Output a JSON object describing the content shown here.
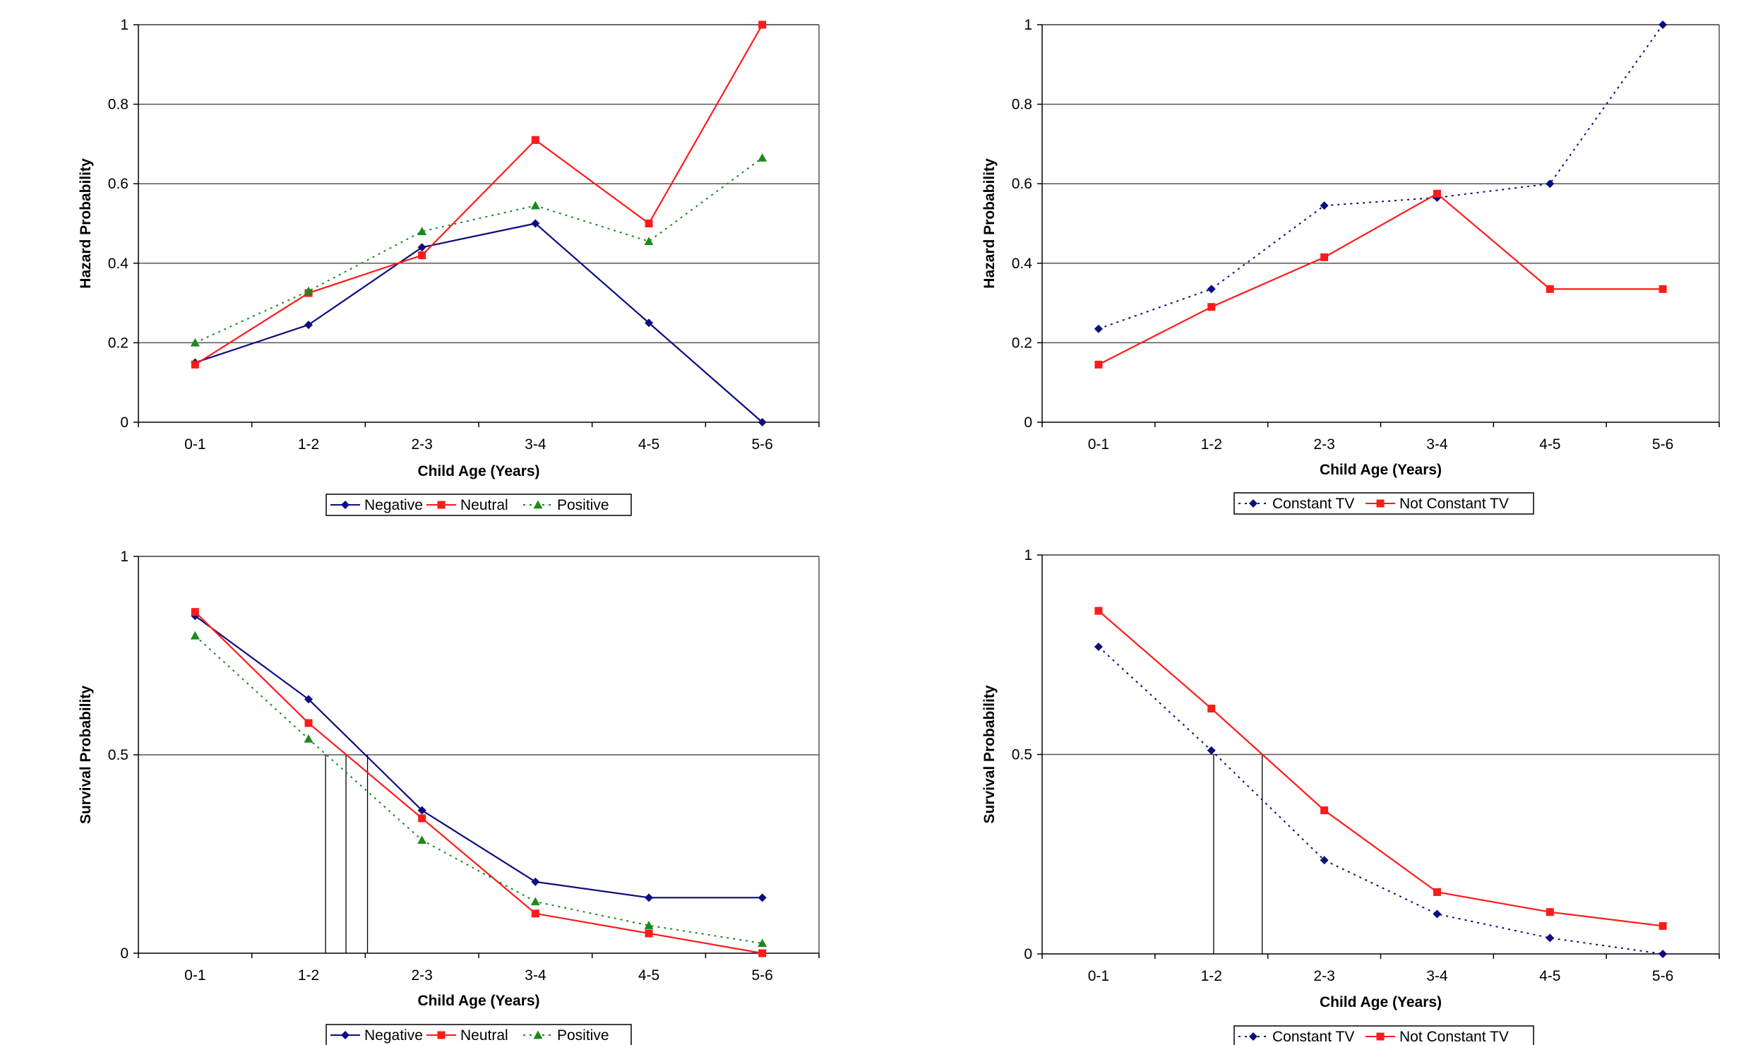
{
  "colors": {
    "negative": "#0d0d80",
    "neutral": "#ff1a1a",
    "positive": "#1a8a1a",
    "constant_tv": "#0d0d80",
    "not_constant_tv": "#ff1a1a",
    "gridline": "#555555",
    "axis": "#000000"
  },
  "chart_data": [
    {
      "id": "hazard-valence",
      "type": "line",
      "title": "",
      "xlabel": "Child Age (Years)",
      "ylabel": "Hazard Probability",
      "categories": [
        "0-1",
        "1-2",
        "2-3",
        "3-4",
        "4-5",
        "5-6"
      ],
      "ylim": [
        0,
        1
      ],
      "yticks": [
        "0",
        "0.2",
        "0.4",
        "0.6",
        "0.8",
        "1"
      ],
      "grid": true,
      "legend_position": "bottom",
      "series": [
        {
          "name": "Negative",
          "color_key": "negative",
          "marker": "diamond",
          "dash": "solid",
          "values": [
            0.15,
            0.245,
            0.44,
            0.5,
            0.25,
            0.0
          ]
        },
        {
          "name": "Neutral",
          "color_key": "neutral",
          "marker": "square",
          "dash": "solid",
          "values": [
            0.145,
            0.325,
            0.42,
            0.71,
            0.5,
            1.0
          ]
        },
        {
          "name": "Positive",
          "color_key": "positive",
          "marker": "triangle",
          "dash": "dotted",
          "values": [
            0.2,
            0.33,
            0.48,
            0.545,
            0.455,
            0.665
          ]
        }
      ]
    },
    {
      "id": "hazard-tv",
      "type": "line",
      "title": "",
      "xlabel": "Child Age (Years)",
      "ylabel": "Hazard Probability",
      "categories": [
        "0-1",
        "1-2",
        "2-3",
        "3-4",
        "4-5",
        "5-6"
      ],
      "ylim": [
        0,
        1
      ],
      "yticks": [
        "0",
        "0.2",
        "0.4",
        "0.6",
        "0.8",
        "1"
      ],
      "grid": true,
      "legend_position": "bottom",
      "series": [
        {
          "name": "Constant TV",
          "color_key": "constant_tv",
          "marker": "diamond",
          "dash": "dotted",
          "values": [
            0.235,
            0.335,
            0.545,
            0.565,
            0.6,
            1.0
          ]
        },
        {
          "name": "Not Constant TV",
          "color_key": "not_constant_tv",
          "marker": "square",
          "dash": "solid",
          "values": [
            0.145,
            0.29,
            0.415,
            0.575,
            0.335,
            0.335
          ]
        }
      ]
    },
    {
      "id": "survival-valence",
      "type": "line",
      "title": "",
      "xlabel": "Child Age (Years)",
      "ylabel": "Survival Probability",
      "categories": [
        "0-1",
        "1-2",
        "2-3",
        "3-4",
        "4-5",
        "5-6"
      ],
      "ylim": [
        0,
        1
      ],
      "yticks": [
        "0",
        "0.5",
        "1"
      ],
      "grid": true,
      "legend_position": "bottom",
      "median_lines_x": [
        2.15,
        2.33,
        2.52
      ],
      "series": [
        {
          "name": "Negative",
          "color_key": "negative",
          "marker": "diamond",
          "dash": "solid",
          "values": [
            0.85,
            0.64,
            0.36,
            0.18,
            0.14,
            0.14
          ]
        },
        {
          "name": "Neutral",
          "color_key": "neutral",
          "marker": "square",
          "dash": "solid",
          "values": [
            0.86,
            0.58,
            0.34,
            0.1,
            0.05,
            0.0
          ]
        },
        {
          "name": "Positive",
          "color_key": "positive",
          "marker": "triangle",
          "dash": "dotted",
          "values": [
            0.8,
            0.54,
            0.285,
            0.13,
            0.07,
            0.025
          ]
        }
      ]
    },
    {
      "id": "survival-tv",
      "type": "line",
      "title": "",
      "xlabel": "Child Age (Years)",
      "ylabel": "Survival Probability",
      "categories": [
        "0-1",
        "1-2",
        "2-3",
        "3-4",
        "4-5",
        "5-6"
      ],
      "ylim": [
        0,
        1
      ],
      "yticks": [
        "0",
        "0.5",
        "1"
      ],
      "grid": true,
      "legend_position": "bottom",
      "median_lines_x": [
        2.02,
        2.45
      ],
      "series": [
        {
          "name": "Constant TV",
          "color_key": "constant_tv",
          "marker": "diamond",
          "dash": "dotted",
          "values": [
            0.77,
            0.51,
            0.235,
            0.1,
            0.04,
            0.0
          ]
        },
        {
          "name": "Not Constant TV",
          "color_key": "not_constant_tv",
          "marker": "square",
          "dash": "solid",
          "values": [
            0.86,
            0.615,
            0.36,
            0.155,
            0.105,
            0.07
          ]
        }
      ]
    }
  ]
}
